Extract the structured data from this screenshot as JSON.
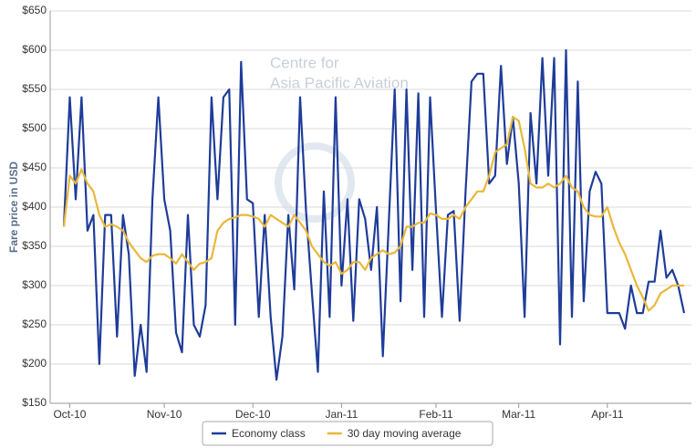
{
  "chart_data": {
    "type": "line",
    "y_label": "Fare price in USD",
    "watermark": [
      "Centre for",
      "Asia Pacific Aviation"
    ],
    "categories": [
      null,
      "Oct-10",
      null,
      null,
      null,
      null,
      null,
      null,
      null,
      null,
      null,
      null,
      null,
      null,
      null,
      null,
      null,
      "Nov-10",
      null,
      null,
      null,
      null,
      null,
      null,
      null,
      null,
      null,
      null,
      null,
      null,
      null,
      null,
      "Dec-10",
      null,
      null,
      null,
      null,
      null,
      null,
      null,
      null,
      null,
      null,
      null,
      null,
      null,
      null,
      "Jan-11",
      null,
      null,
      null,
      null,
      null,
      null,
      null,
      null,
      null,
      null,
      null,
      null,
      null,
      null,
      null,
      "Feb-11",
      null,
      null,
      null,
      null,
      null,
      null,
      null,
      null,
      null,
      null,
      null,
      null,
      null,
      "Mar-11",
      null,
      null,
      null,
      null,
      null,
      null,
      null,
      null,
      null,
      null,
      null,
      null,
      null,
      null,
      "Apr-11",
      null,
      null,
      null,
      null,
      null,
      null,
      null,
      null,
      null,
      null,
      null,
      null,
      null
    ],
    "series": [
      {
        "name": "Economy class",
        "color": "#1f3c99",
        "values": [
          375,
          540,
          410,
          540,
          370,
          390,
          200,
          390,
          390,
          235,
          390,
          340,
          185,
          250,
          190,
          410,
          540,
          410,
          370,
          240,
          215,
          390,
          250,
          235,
          275,
          540,
          410,
          540,
          550,
          250,
          585,
          410,
          405,
          260,
          390,
          260,
          180,
          235,
          390,
          295,
          540,
          395,
          290,
          190,
          420,
          260,
          540,
          300,
          410,
          255,
          410,
          385,
          320,
          400,
          210,
          380,
          550,
          280,
          550,
          320,
          545,
          260,
          540,
          395,
          260,
          390,
          395,
          255,
          420,
          560,
          570,
          570,
          430,
          440,
          580,
          455,
          515,
          430,
          260,
          520,
          430,
          590,
          440,
          590,
          225,
          600,
          260,
          560,
          280,
          420,
          445,
          430,
          265,
          265,
          265,
          245,
          300,
          265,
          265,
          305,
          305,
          370,
          310,
          320,
          300,
          265
        ]
      },
      {
        "name": "30 day moving average",
        "color": "#e8b83a",
        "values": [
          375,
          440,
          430,
          448,
          430,
          420,
          390,
          375,
          378,
          375,
          370,
          355,
          345,
          335,
          330,
          338,
          340,
          340,
          335,
          328,
          340,
          330,
          320,
          328,
          330,
          335,
          370,
          380,
          385,
          387,
          390,
          390,
          388,
          385,
          375,
          390,
          385,
          380,
          375,
          390,
          380,
          370,
          350,
          340,
          330,
          325,
          330,
          315,
          320,
          330,
          330,
          320,
          335,
          340,
          345,
          340,
          342,
          350,
          375,
          375,
          380,
          380,
          392,
          390,
          385,
          385,
          390,
          385,
          400,
          410,
          420,
          420,
          440,
          470,
          475,
          480,
          515,
          510,
          475,
          430,
          425,
          425,
          430,
          425,
          430,
          440,
          425,
          420,
          400,
          390,
          388,
          388,
          400,
          375,
          355,
          340,
          320,
          300,
          285,
          268,
          275,
          290,
          295,
          300,
          300,
          300
        ]
      }
    ],
    "ylim": [
      150,
      650
    ],
    "yticks": [
      {
        "value": 150,
        "label": "$150"
      },
      {
        "value": 200,
        "label": "$200"
      },
      {
        "value": 250,
        "label": "$250"
      },
      {
        "value": 300,
        "label": "$300"
      },
      {
        "value": 350,
        "label": "$350"
      },
      {
        "value": 400,
        "label": "$400"
      },
      {
        "value": 450,
        "label": "$450"
      },
      {
        "value": 500,
        "label": "$500"
      },
      {
        "value": 550,
        "label": "$550"
      },
      {
        "value": 600,
        "label": "$600"
      },
      {
        "value": 650,
        "label": "$650"
      }
    ],
    "grid": true,
    "legend": "bottom"
  }
}
